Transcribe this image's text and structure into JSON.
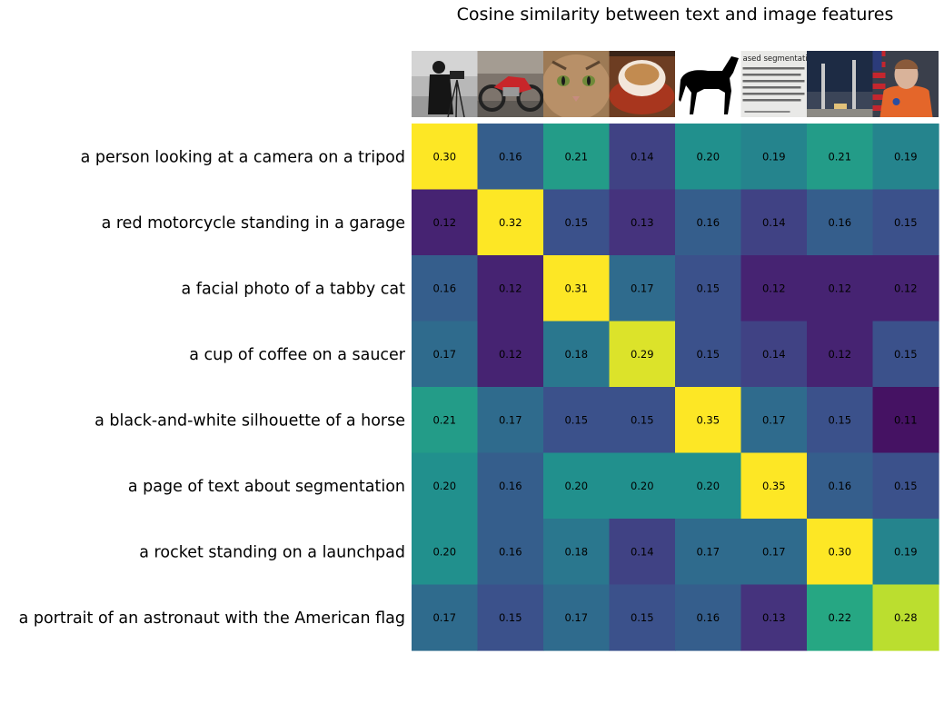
{
  "chart_data": {
    "type": "heatmap",
    "title": "Cosine similarity between text and image features",
    "colormap": "viridis",
    "vmin": 0.1,
    "vmax": 0.3,
    "rows": [
      "a person looking at a camera on a tripod",
      "a red motorcycle standing in a garage",
      "a facial photo of a tabby cat",
      "a cup of coffee on a saucer",
      "a black-and-white silhouette of a horse",
      "a page of text about segmentation",
      "a rocket standing on a launchpad",
      "a portrait of an astronaut with the American flag"
    ],
    "columns": [
      {
        "image": "camera-man-photo"
      },
      {
        "image": "red-motorcycle-photo"
      },
      {
        "image": "tabby-cat-photo"
      },
      {
        "image": "coffee-cup-photo"
      },
      {
        "image": "horse-silhouette"
      },
      {
        "image": "segmentation-text-page",
        "visible_text": "ased segmentation"
      },
      {
        "image": "rocket-launchpad-photo"
      },
      {
        "image": "astronaut-flag-photo"
      }
    ],
    "values": [
      [
        0.3,
        0.16,
        0.21,
        0.14,
        0.2,
        0.19,
        0.21,
        0.19
      ],
      [
        0.12,
        0.32,
        0.15,
        0.13,
        0.16,
        0.14,
        0.16,
        0.15
      ],
      [
        0.16,
        0.12,
        0.31,
        0.17,
        0.15,
        0.12,
        0.12,
        0.12
      ],
      [
        0.17,
        0.12,
        0.18,
        0.29,
        0.15,
        0.14,
        0.12,
        0.15
      ],
      [
        0.21,
        0.17,
        0.15,
        0.15,
        0.35,
        0.17,
        0.15,
        0.11
      ],
      [
        0.2,
        0.16,
        0.2,
        0.2,
        0.2,
        0.35,
        0.16,
        0.15
      ],
      [
        0.2,
        0.16,
        0.18,
        0.14,
        0.17,
        0.17,
        0.3,
        0.19
      ],
      [
        0.17,
        0.15,
        0.17,
        0.15,
        0.16,
        0.13,
        0.22,
        0.28
      ]
    ],
    "grid": false,
    "axes_visible": false
  }
}
